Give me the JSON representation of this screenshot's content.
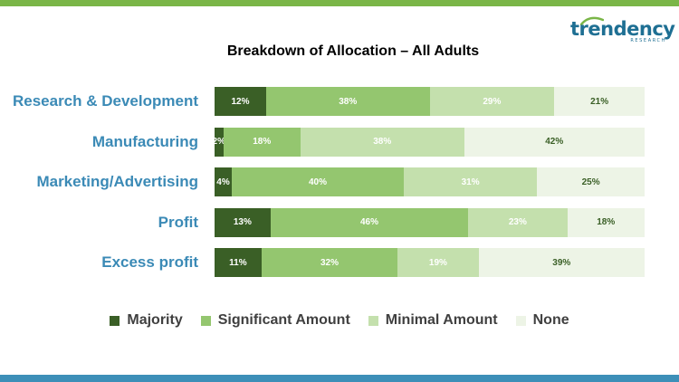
{
  "logo": {
    "word": "trendency",
    "sub": "RESEARCH"
  },
  "chart_data": {
    "type": "bar",
    "orientation": "horizontal",
    "stacked": true,
    "title": "Breakdown of Allocation – All Adults",
    "categories": [
      "Research & Development",
      "Manufacturing",
      "Marketing/Advertising",
      "Profit",
      "Excess profit"
    ],
    "series": [
      {
        "name": "Majority",
        "color": "#3a5f26",
        "values": [
          12,
          2,
          4,
          13,
          11
        ]
      },
      {
        "name": "Significant Amount",
        "color": "#94c66f",
        "values": [
          38,
          18,
          40,
          46,
          32
        ]
      },
      {
        "name": "Minimal Amount",
        "color": "#c4e0ad",
        "values": [
          29,
          38,
          31,
          23,
          19
        ]
      },
      {
        "name": "None",
        "color": "#edf4e6",
        "values": [
          21,
          42,
          25,
          18,
          39
        ]
      }
    ],
    "value_suffix": "%",
    "xlim": [
      0,
      100
    ],
    "grid": false,
    "legend_position": "bottom"
  }
}
